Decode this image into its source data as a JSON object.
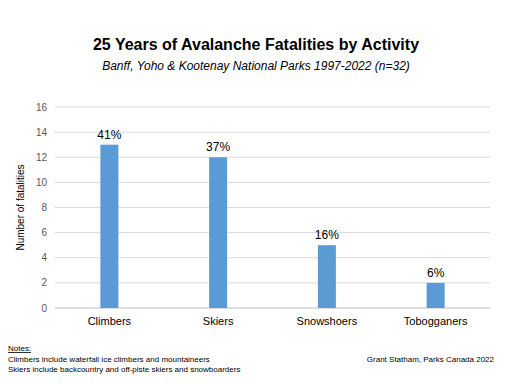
{
  "chart_data": {
    "type": "bar",
    "title": "25 Years of Avalanche Fatalities by Activity",
    "subtitle": "Banff, Yoho & Kootenay National Parks 1997-2022 (n=32)",
    "ylabel": "Number of fatalities",
    "categories": [
      "Climbers",
      "Skiers",
      "Snowshoers",
      "Tobogganers"
    ],
    "values": [
      13,
      12,
      5,
      2
    ],
    "annotations": [
      "41%",
      "37%",
      "16%",
      "6%"
    ],
    "color": "#5b9bd5",
    "ylim": [
      0,
      16
    ],
    "yticks": [
      0,
      2,
      4,
      6,
      8,
      10,
      12,
      14,
      16
    ],
    "grid": true,
    "notes": {
      "heading": "Notes:",
      "lines": [
        "Climbers include waterfall ice climbers and mountaineers",
        "Skiers include backcountry and off-piste skiers and snowboarders"
      ]
    },
    "source": "Grant Statham, Parks Canada 2022"
  }
}
